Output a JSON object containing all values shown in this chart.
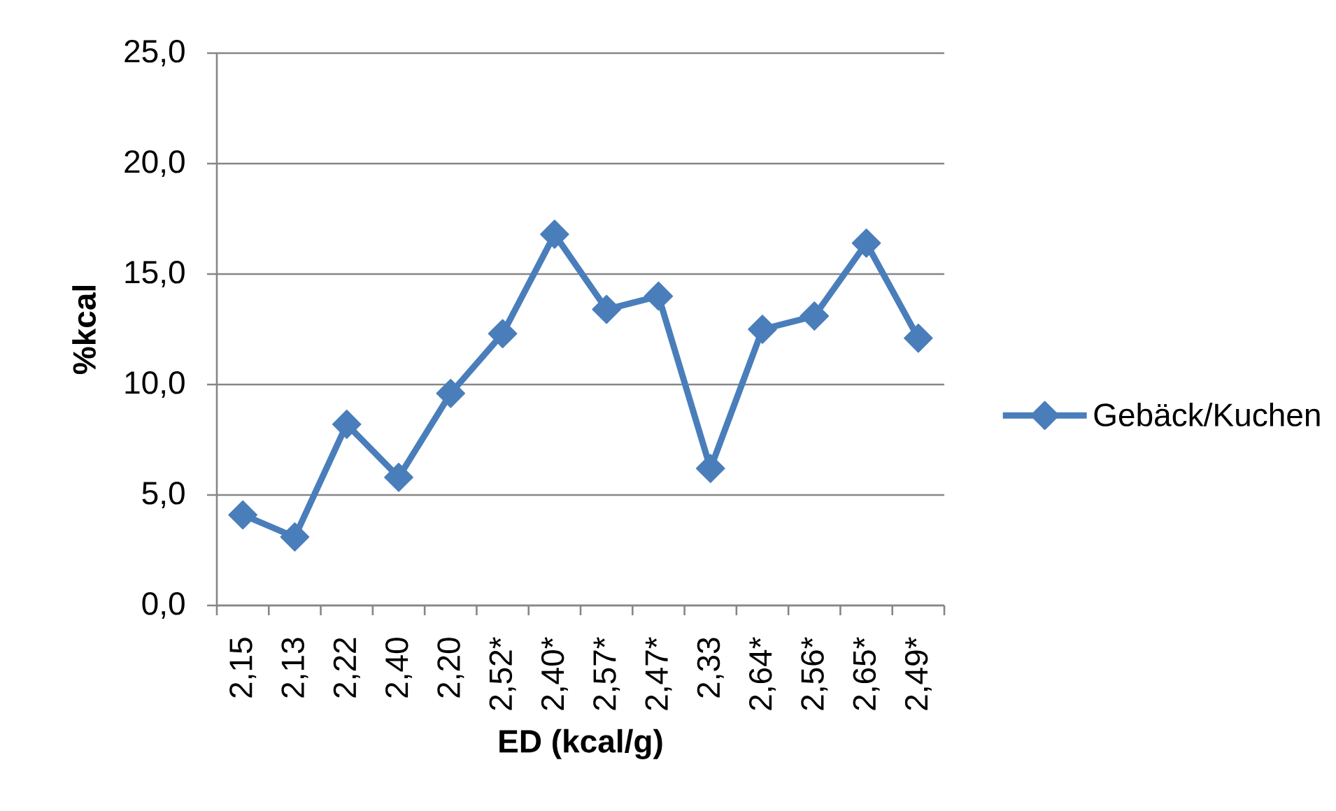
{
  "chart_data": {
    "type": "line",
    "xlabel": "ED (kcal/g)",
    "ylabel": "%kcal",
    "categories": [
      "2,15",
      "2,13",
      "2,22",
      "2,40",
      "2,20",
      "2,52*",
      "2,40*",
      "2,57*",
      "2,47*",
      "2,33",
      "2,64*",
      "2,56*",
      "2,65*",
      "2,49*"
    ],
    "series": [
      {
        "name": "Gebäck/Kuchen",
        "color": "#4a7ebb",
        "values": [
          4.1,
          3.1,
          8.2,
          5.8,
          9.6,
          12.3,
          16.8,
          13.4,
          14.0,
          6.2,
          12.5,
          13.1,
          16.4,
          12.1
        ]
      }
    ],
    "ylim": [
      0,
      25
    ],
    "yticks": [
      {
        "value": 0,
        "label": "0,0"
      },
      {
        "value": 5,
        "label": "5,0"
      },
      {
        "value": 10,
        "label": "10,0"
      },
      {
        "value": 15,
        "label": "15,0"
      },
      {
        "value": 20,
        "label": "20,0"
      },
      {
        "value": 25,
        "label": "25,0"
      }
    ],
    "grid": "y",
    "legend": "right",
    "marker": "diamond",
    "line_style": "solid"
  }
}
